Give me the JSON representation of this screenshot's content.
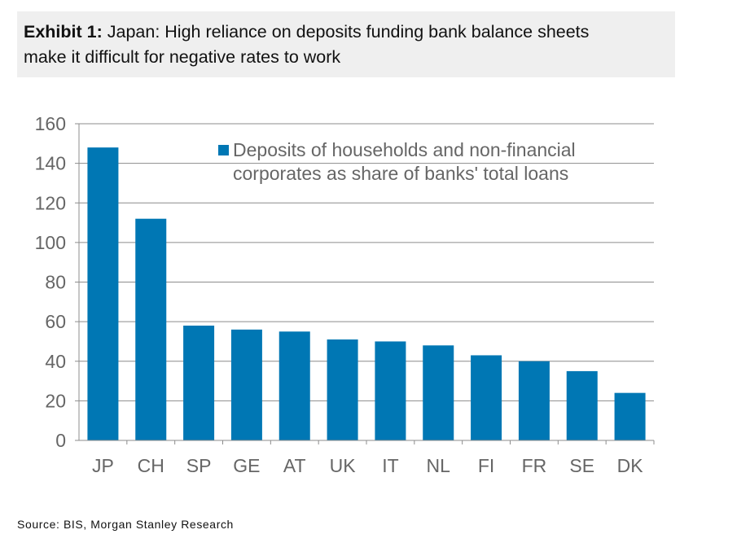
{
  "header": {
    "exhibit_label": "Exhibit 1:",
    "title_line1": "Japan: High reliance on deposits funding bank balance sheets",
    "title_line2": "make it difficult for negative rates to work"
  },
  "source": "Source: BIS, Morgan Stanley Research",
  "colors": {
    "bar": "#0077b4",
    "grid": "#8c8c8c",
    "tick_text": "#666666",
    "header_bg": "#efefef"
  },
  "chart_data": {
    "type": "bar",
    "categories": [
      "JP",
      "CH",
      "SP",
      "GE",
      "AT",
      "UK",
      "IT",
      "NL",
      "FI",
      "FR",
      "SE",
      "DK"
    ],
    "series": [
      {
        "name": "Deposits of households and non-financial corporates as share of banks' total loans",
        "legend_lines": [
          "Deposits of households and non-financial",
          "corporates as share of banks' total loans"
        ],
        "values": [
          148,
          112,
          58,
          56,
          55,
          51,
          50,
          48,
          43,
          40,
          35,
          24
        ]
      }
    ],
    "ylim": [
      0,
      160
    ],
    "yticks": [
      0,
      20,
      40,
      60,
      80,
      100,
      120,
      140,
      160
    ],
    "grid": true,
    "legend_position": "top-right",
    "xlabel": "",
    "ylabel": ""
  }
}
